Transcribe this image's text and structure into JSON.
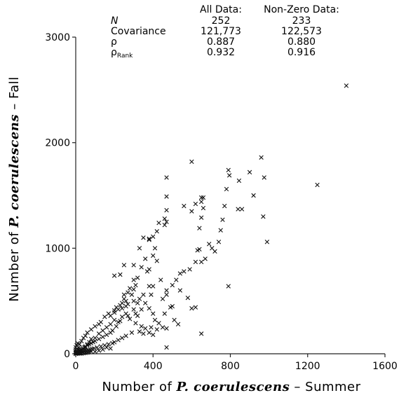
{
  "chart_data": {
    "type": "scatter",
    "xlabel_parts": [
      "Number of ",
      "P. coerulescens",
      " – Summer"
    ],
    "ylabel_parts": [
      "Number of ",
      "P. coerulescens",
      " – Fall"
    ],
    "xlim": [
      0,
      1600
    ],
    "ylim": [
      0,
      3000
    ],
    "xticks": [
      0,
      400,
      800,
      1200,
      1600
    ],
    "yticks": [
      0,
      1000,
      2000,
      3000
    ],
    "marker": "x",
    "stats_table": {
      "col_headers": [
        "All Data:",
        "Non-Zero Data:"
      ],
      "rows": [
        {
          "label": "N",
          "values": [
            "252",
            "233"
          ]
        },
        {
          "label": "Covariance",
          "values": [
            "121,773",
            "122,573"
          ]
        },
        {
          "label": "ρ",
          "values": [
            "0.887",
            "0.880"
          ]
        },
        {
          "label": "ρRank",
          "values": [
            "0.932",
            "0.916"
          ]
        }
      ]
    },
    "points": [
      [
        1400,
        2540
      ],
      [
        1250,
        1600
      ],
      [
        990,
        1060
      ],
      [
        960,
        1860
      ],
      [
        975,
        1670
      ],
      [
        970,
        1300
      ],
      [
        920,
        1500
      ],
      [
        900,
        1720
      ],
      [
        860,
        1370
      ],
      [
        845,
        1640
      ],
      [
        840,
        1370
      ],
      [
        790,
        1740
      ],
      [
        795,
        1690
      ],
      [
        780,
        1560
      ],
      [
        760,
        1270
      ],
      [
        750,
        1170
      ],
      [
        790,
        640
      ],
      [
        770,
        1400
      ],
      [
        740,
        1060
      ],
      [
        720,
        970
      ],
      [
        705,
        1000
      ],
      [
        690,
        1040
      ],
      [
        660,
        1480
      ],
      [
        650,
        1480
      ],
      [
        650,
        1440
      ],
      [
        660,
        1380
      ],
      [
        620,
        1420
      ],
      [
        600,
        1820
      ],
      [
        560,
        1400
      ],
      [
        600,
        1350
      ],
      [
        650,
        1290
      ],
      [
        640,
        1190
      ],
      [
        640,
        990
      ],
      [
        630,
        980
      ],
      [
        650,
        870
      ],
      [
        670,
        900
      ],
      [
        620,
        870
      ],
      [
        590,
        800
      ],
      [
        560,
        780
      ],
      [
        540,
        760
      ],
      [
        520,
        700
      ],
      [
        500,
        650
      ],
      [
        540,
        600
      ],
      [
        580,
        530
      ],
      [
        600,
        430
      ],
      [
        620,
        440
      ],
      [
        650,
        190
      ],
      [
        470,
        1670
      ],
      [
        470,
        1490
      ],
      [
        470,
        1360
      ],
      [
        460,
        1280
      ],
      [
        470,
        1250
      ],
      [
        460,
        1220
      ],
      [
        430,
        1240
      ],
      [
        420,
        1160
      ],
      [
        410,
        1000
      ],
      [
        400,
        1110
      ],
      [
        380,
        1090
      ],
      [
        380,
        1080
      ],
      [
        350,
        1100
      ],
      [
        330,
        1000
      ],
      [
        360,
        900
      ],
      [
        400,
        930
      ],
      [
        420,
        880
      ],
      [
        380,
        800
      ],
      [
        370,
        780
      ],
      [
        340,
        820
      ],
      [
        300,
        840
      ],
      [
        250,
        840
      ],
      [
        230,
        750
      ],
      [
        200,
        740
      ],
      [
        320,
        720
      ],
      [
        300,
        700
      ],
      [
        380,
        640
      ],
      [
        440,
        700
      ],
      [
        470,
        600
      ],
      [
        470,
        560
      ],
      [
        450,
        520
      ],
      [
        490,
        440
      ],
      [
        500,
        450
      ],
      [
        460,
        380
      ],
      [
        510,
        320
      ],
      [
        530,
        280
      ],
      [
        470,
        240
      ],
      [
        420,
        230
      ],
      [
        470,
        60
      ],
      [
        400,
        640
      ],
      [
        390,
        560
      ],
      [
        350,
        560
      ],
      [
        330,
        520
      ],
      [
        300,
        500
      ],
      [
        270,
        470
      ],
      [
        260,
        450
      ],
      [
        240,
        430
      ],
      [
        220,
        420
      ],
      [
        200,
        390
      ],
      [
        170,
        380
      ],
      [
        150,
        350
      ],
      [
        130,
        300
      ],
      [
        120,
        280
      ],
      [
        100,
        260
      ],
      [
        80,
        230
      ],
      [
        60,
        200
      ],
      [
        50,
        170
      ],
      [
        40,
        150
      ],
      [
        30,
        120
      ],
      [
        20,
        90
      ],
      [
        15,
        60
      ],
      [
        10,
        40
      ],
      [
        5,
        20
      ],
      [
        0,
        0
      ],
      [
        300,
        420
      ],
      [
        310,
        380
      ],
      [
        320,
        360
      ],
      [
        340,
        420
      ],
      [
        360,
        480
      ],
      [
        320,
        480
      ],
      [
        290,
        560
      ],
      [
        250,
        520
      ],
      [
        220,
        300
      ],
      [
        200,
        320
      ],
      [
        180,
        280
      ],
      [
        160,
        250
      ],
      [
        140,
        220
      ],
      [
        120,
        190
      ],
      [
        100,
        150
      ],
      [
        80,
        140
      ],
      [
        70,
        110
      ],
      [
        60,
        90
      ],
      [
        50,
        70
      ],
      [
        45,
        60
      ],
      [
        35,
        45
      ],
      [
        25,
        30
      ],
      [
        20,
        20
      ],
      [
        330,
        210
      ],
      [
        350,
        190
      ],
      [
        380,
        200
      ],
      [
        400,
        180
      ],
      [
        290,
        200
      ],
      [
        260,
        170
      ],
      [
        240,
        150
      ],
      [
        220,
        130
      ],
      [
        200,
        110
      ],
      [
        190,
        100
      ],
      [
        170,
        90
      ],
      [
        150,
        80
      ],
      [
        130,
        70
      ],
      [
        110,
        60
      ],
      [
        95,
        50
      ],
      [
        85,
        45
      ],
      [
        75,
        40
      ],
      [
        65,
        35
      ],
      [
        55,
        30
      ],
      [
        45,
        25
      ],
      [
        35,
        20
      ],
      [
        25,
        15
      ],
      [
        15,
        10
      ],
      [
        10,
        5
      ],
      [
        380,
        430
      ],
      [
        400,
        380
      ],
      [
        410,
        320
      ],
      [
        430,
        290
      ],
      [
        450,
        250
      ],
      [
        390,
        250
      ],
      [
        360,
        240
      ],
      [
        340,
        260
      ],
      [
        310,
        290
      ],
      [
        280,
        330
      ],
      [
        270,
        360
      ],
      [
        260,
        380
      ],
      [
        240,
        350
      ],
      [
        230,
        310
      ],
      [
        210,
        260
      ],
      [
        190,
        220
      ],
      [
        180,
        200
      ],
      [
        160,
        180
      ],
      [
        140,
        160
      ],
      [
        120,
        140
      ],
      [
        100,
        120
      ],
      [
        90,
        110
      ],
      [
        80,
        100
      ],
      [
        70,
        90
      ],
      [
        60,
        80
      ],
      [
        50,
        60
      ],
      [
        40,
        50
      ],
      [
        30,
        40
      ],
      [
        20,
        30
      ],
      [
        10,
        15
      ],
      [
        5,
        8
      ],
      [
        2,
        3
      ],
      [
        100,
        20
      ],
      [
        120,
        30
      ],
      [
        140,
        40
      ],
      [
        160,
        60
      ],
      [
        180,
        50
      ],
      [
        60,
        10
      ],
      [
        70,
        15
      ],
      [
        80,
        20
      ],
      [
        40,
        5
      ],
      [
        30,
        3
      ],
      [
        20,
        2
      ],
      [
        50,
        8
      ],
      [
        0,
        20
      ],
      [
        0,
        40
      ],
      [
        0,
        60
      ],
      [
        5,
        80
      ],
      [
        10,
        100
      ],
      [
        0,
        10
      ],
      [
        3,
        5
      ],
      [
        8,
        3
      ],
      [
        12,
        6
      ],
      [
        18,
        12
      ],
      [
        22,
        8
      ],
      [
        28,
        4
      ],
      [
        300,
        610
      ],
      [
        310,
        650
      ],
      [
        280,
        620
      ],
      [
        270,
        580
      ],
      [
        250,
        560
      ],
      [
        260,
        500
      ],
      [
        240,
        480
      ],
      [
        230,
        460
      ],
      [
        210,
        440
      ],
      [
        200,
        410
      ],
      [
        180,
        360
      ]
    ]
  }
}
